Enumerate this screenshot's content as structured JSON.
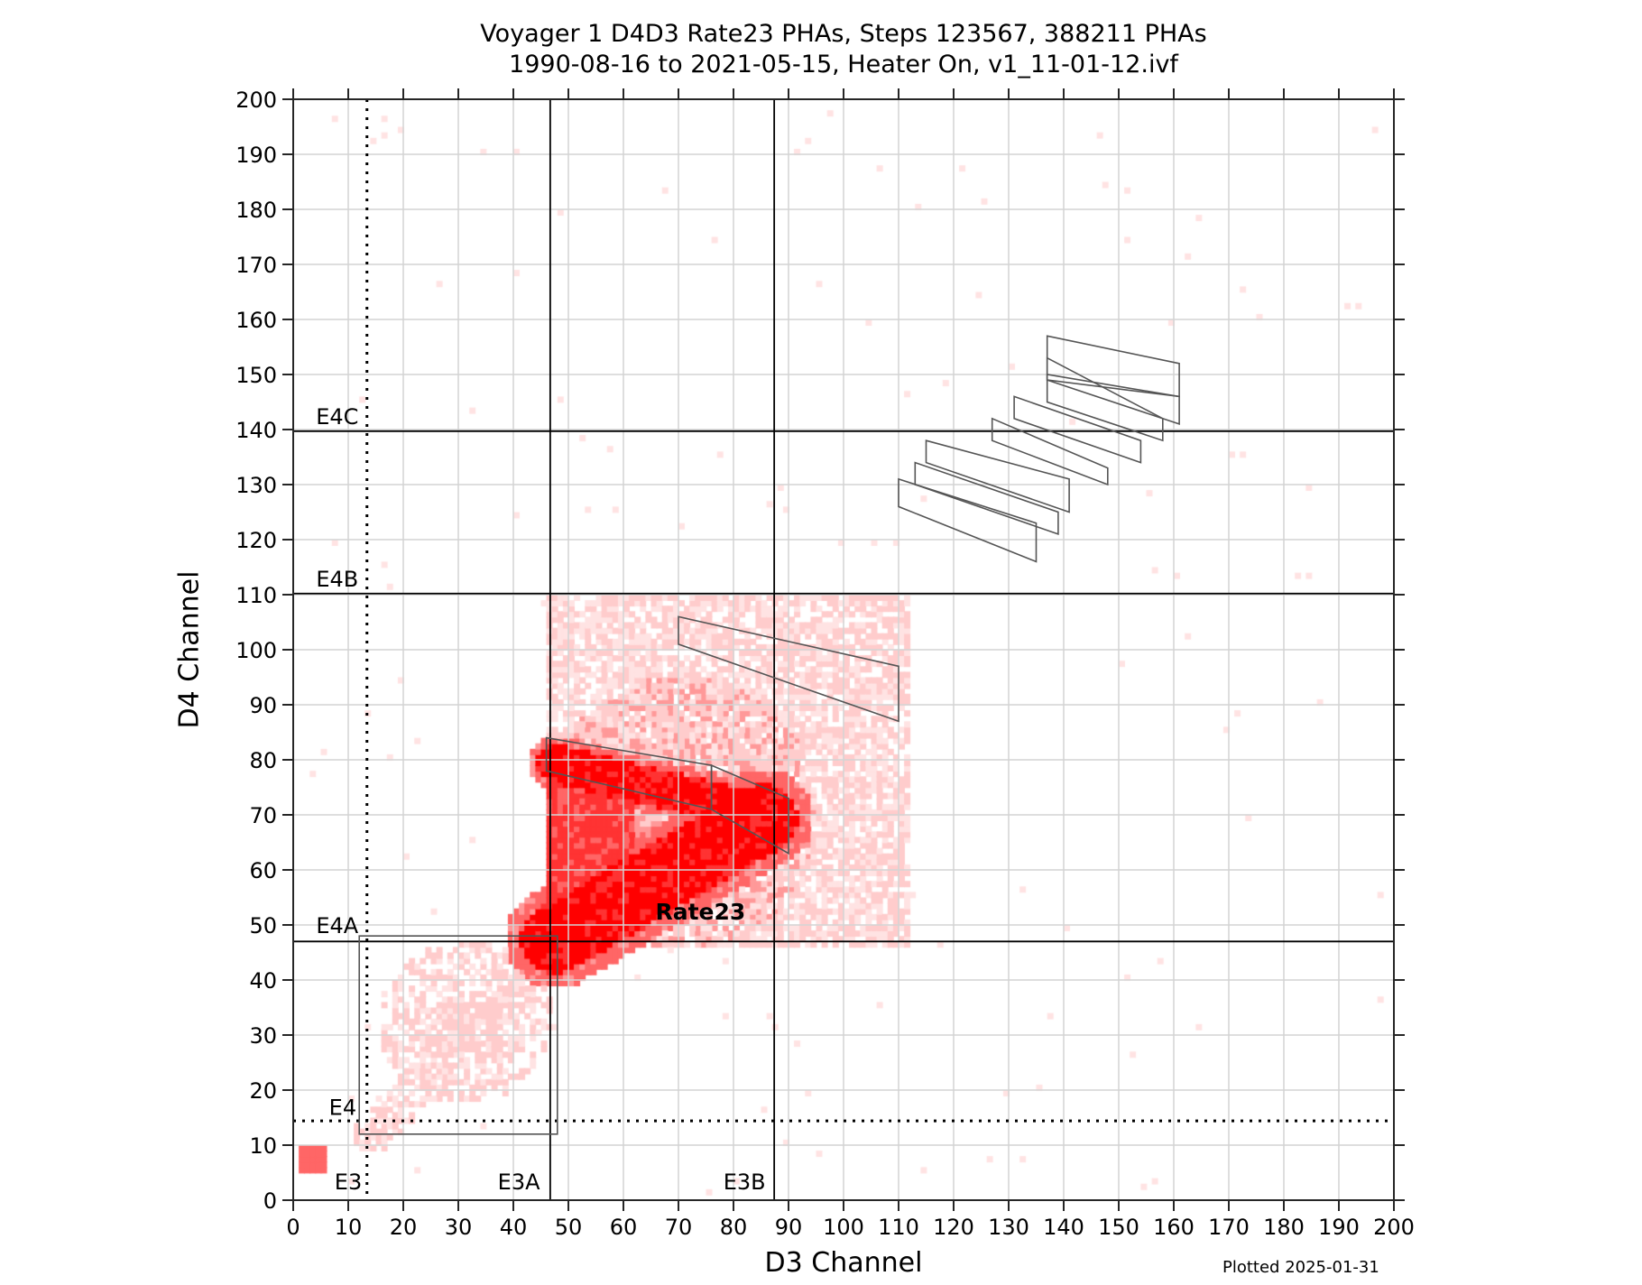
{
  "title": {
    "line1": "Voyager 1 D4D3 Rate23 PHAs, Steps 123567, 388211 PHAs",
    "line2": "1990-08-16 to 2021-05-15, Heater On, v1_11-01-12.ivf"
  },
  "footer": {
    "plotted": "Plotted 2025-01-31"
  },
  "colors": {
    "axis": "#262626",
    "grid": "#d4d4d4",
    "boundary": "#000000",
    "polygon": "#555555",
    "heat_scale": [
      "#ffe3e3",
      "#ffcccc",
      "#ff9999",
      "#ff6666",
      "#ff3333",
      "#ff0000"
    ]
  },
  "chart_data": {
    "type": "heatmap",
    "title": "Voyager 1 D4D3 Rate23 PHAs, Steps 123567, 388211 PHAs / 1990-08-16 to 2021-05-15, Heater On, v1_11-01-12.ivf",
    "xlabel": "D3 Channel",
    "ylabel": "D4 Channel",
    "xlim": [
      0,
      200
    ],
    "ylim": [
      0,
      200
    ],
    "grid": true,
    "bin_size": 1,
    "total_phas": 388211,
    "x_ticks": [
      0,
      10,
      20,
      30,
      40,
      50,
      60,
      70,
      80,
      90,
      100,
      110,
      120,
      130,
      140,
      150,
      160,
      170,
      180,
      190,
      200
    ],
    "y_ticks": [
      0,
      10,
      20,
      30,
      40,
      50,
      60,
      70,
      80,
      90,
      100,
      110,
      120,
      130,
      140,
      150,
      160,
      170,
      180,
      190,
      200
    ],
    "boundaries": {
      "vertical": [
        {
          "name": "E3",
          "x": 13.4,
          "style": "dotted",
          "label_x": 10,
          "label_y": 2
        },
        {
          "name": "E3A",
          "x": 46.7,
          "style": "solid",
          "label_x": 41,
          "label_y": 2
        },
        {
          "name": "E3B",
          "x": 87.4,
          "style": "solid",
          "label_x": 82,
          "label_y": 2
        }
      ],
      "horizontal": [
        {
          "name": "E4",
          "y": 14.4,
          "style": "dotted",
          "label_x": 9,
          "label_y": 15.5
        },
        {
          "name": "E4A",
          "y": 47.0,
          "style": "solid",
          "label_x": 8,
          "label_y": 48.5
        },
        {
          "name": "E4B",
          "y": 110.2,
          "style": "solid",
          "label_x": 8,
          "label_y": 111.5
        },
        {
          "name": "E4C",
          "y": 139.7,
          "style": "solid",
          "label_x": 8,
          "label_y": 141
        }
      ]
    },
    "annotations": [
      {
        "text": "Rate23",
        "x": 74,
        "y": 51,
        "bold": true
      }
    ],
    "polygons": [
      {
        "name": "box-low",
        "points": [
          [
            12,
            48
          ],
          [
            48,
            48
          ],
          [
            48,
            12
          ],
          [
            12,
            12
          ]
        ]
      },
      {
        "name": "track-a",
        "points": [
          [
            46,
            84
          ],
          [
            76,
            79
          ],
          [
            76,
            71
          ],
          [
            46,
            78
          ]
        ]
      },
      {
        "name": "track-b",
        "points": [
          [
            76,
            79
          ],
          [
            90,
            73
          ],
          [
            90,
            63
          ],
          [
            76,
            71
          ]
        ]
      },
      {
        "name": "track-c",
        "points": [
          [
            70,
            106
          ],
          [
            110,
            97
          ],
          [
            110,
            87
          ],
          [
            70,
            101
          ]
        ]
      },
      {
        "name": "hi-1",
        "points": [
          [
            110,
            131
          ],
          [
            135,
            123
          ],
          [
            135,
            116
          ],
          [
            110,
            126
          ]
        ]
      },
      {
        "name": "hi-2",
        "points": [
          [
            113,
            134
          ],
          [
            139,
            125
          ],
          [
            139,
            121
          ],
          [
            113,
            130
          ]
        ]
      },
      {
        "name": "hi-3",
        "points": [
          [
            115,
            138
          ],
          [
            141,
            131
          ],
          [
            141,
            125
          ],
          [
            115,
            134
          ]
        ]
      },
      {
        "name": "hi-4",
        "points": [
          [
            127,
            142
          ],
          [
            148,
            133
          ],
          [
            148,
            130
          ],
          [
            127,
            138
          ]
        ]
      },
      {
        "name": "hi-5",
        "points": [
          [
            131,
            146
          ],
          [
            154,
            138
          ],
          [
            154,
            134
          ],
          [
            131,
            142
          ]
        ]
      },
      {
        "name": "hi-6",
        "points": [
          [
            137,
            153
          ],
          [
            158,
            142
          ],
          [
            158,
            138
          ],
          [
            137,
            145
          ]
        ]
      },
      {
        "name": "hi-7",
        "points": [
          [
            137,
            157
          ],
          [
            161,
            152
          ],
          [
            161,
            146
          ],
          [
            137,
            149
          ]
        ]
      },
      {
        "name": "hi-8",
        "points": [
          [
            137,
            149
          ],
          [
            161,
            141
          ],
          [
            161,
            146
          ],
          [
            137,
            150
          ]
        ]
      }
    ],
    "density_regions": [
      {
        "name": "rate23-core-lower-band",
        "level": 5,
        "description": "dense band from (47,47) rising to (85,69)",
        "shape": "band",
        "from": [
          47,
          47
        ],
        "to": [
          85,
          69
        ],
        "width": 9
      },
      {
        "name": "rate23-core-upper-band",
        "level": 5,
        "description": "dense band along y≈78-80 from x=47 to x=80",
        "shape": "band",
        "from": [
          47,
          79
        ],
        "to": [
          80,
          71
        ],
        "width": 5
      },
      {
        "name": "rate23-core-fill",
        "level": 4,
        "shape": "rect",
        "x": [
          46,
          62
        ],
        "y": [
          47,
          80
        ]
      },
      {
        "name": "rate23-halo",
        "level": 2,
        "shape": "ellipse",
        "center": [
          70,
          70
        ],
        "radii": [
          25,
          25
        ]
      },
      {
        "name": "rate23-sparse",
        "level": 1,
        "shape": "rect",
        "x": [
          46,
          112
        ],
        "y": [
          46,
          110
        ]
      },
      {
        "name": "lower-cluster",
        "level": 1,
        "shape": "ellipse",
        "center": [
          31,
          32
        ],
        "radii": [
          16,
          15
        ]
      },
      {
        "name": "diagonal-tail",
        "level": 1,
        "shape": "band",
        "from": [
          14,
          12
        ],
        "to": [
          46,
          45
        ],
        "width": 4
      },
      {
        "name": "origin-hotspot",
        "level": 3,
        "shape": "ellipse",
        "center": [
          3,
          7
        ],
        "radii": [
          3,
          3
        ]
      },
      {
        "name": "sparse-background",
        "level": 0,
        "shape": "scatter",
        "count": 140
      }
    ]
  }
}
